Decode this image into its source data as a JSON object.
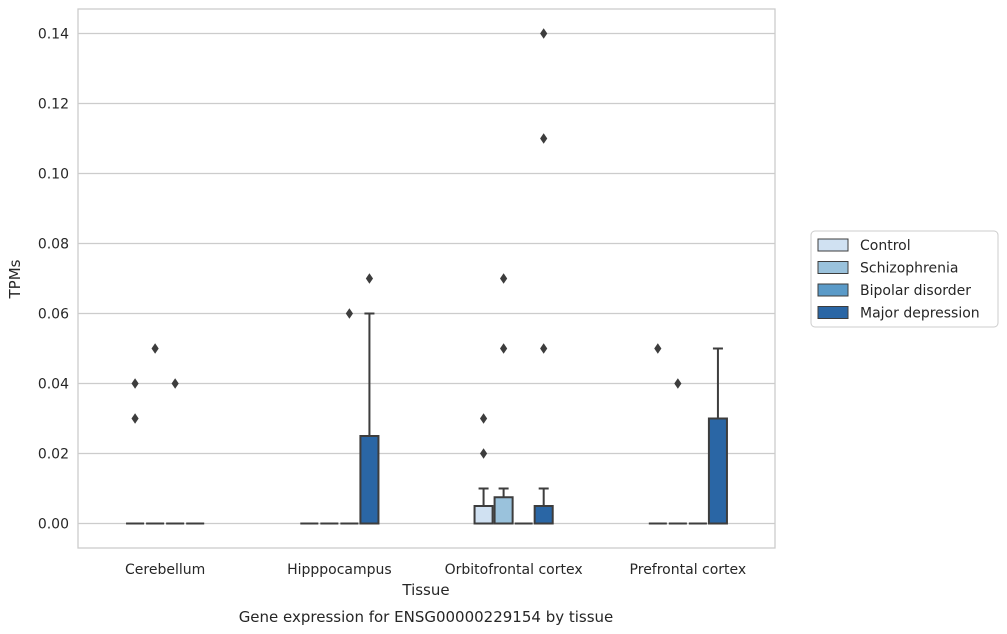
{
  "chart_data": {
    "type": "box",
    "title": "Gene expression for ENSG00000229154 by tissue",
    "xlabel": "Tissue",
    "ylabel": "TPMs",
    "ylim": [
      -0.007,
      0.147
    ],
    "yticks": [
      "0.00",
      "0.02",
      "0.04",
      "0.06",
      "0.08",
      "0.10",
      "0.12",
      "0.14"
    ],
    "ytick_values": [
      0,
      0.02,
      0.04,
      0.06,
      0.08,
      0.1,
      0.12,
      0.14
    ],
    "grid": true,
    "legend_position": "right",
    "categories": [
      "Cerebellum",
      "Hipppocampus",
      "Orbitofrontal cortex",
      "Prefrontal cortex"
    ],
    "series": [
      {
        "name": "Control",
        "color": "#d0e1f2",
        "boxes": [
          {
            "q1": 0,
            "median": 0,
            "q3": 0,
            "whisker_low": 0,
            "whisker_high": 0,
            "outliers": [
              0.03,
              0.04
            ]
          },
          {
            "q1": 0,
            "median": 0,
            "q3": 0,
            "whisker_low": 0,
            "whisker_high": 0,
            "outliers": []
          },
          {
            "q1": 0,
            "median": 0,
            "q3": 0.005,
            "whisker_low": 0,
            "whisker_high": 0.01,
            "outliers": [
              0.02,
              0.03
            ]
          },
          {
            "q1": 0,
            "median": 0,
            "q3": 0,
            "whisker_low": 0,
            "whisker_high": 0,
            "outliers": [
              0.05
            ]
          }
        ]
      },
      {
        "name": "Schizophrenia",
        "color": "#9ac2dc",
        "boxes": [
          {
            "q1": 0,
            "median": 0,
            "q3": 0,
            "whisker_low": 0,
            "whisker_high": 0,
            "outliers": [
              0.05
            ]
          },
          {
            "q1": 0,
            "median": 0,
            "q3": 0,
            "whisker_low": 0,
            "whisker_high": 0,
            "outliers": []
          },
          {
            "q1": 0,
            "median": 0,
            "q3": 0.0075,
            "whisker_low": 0,
            "whisker_high": 0.01,
            "outliers": [
              0.05,
              0.07
            ]
          },
          {
            "q1": 0,
            "median": 0,
            "q3": 0,
            "whisker_low": 0,
            "whisker_high": 0,
            "outliers": [
              0.04
            ]
          }
        ]
      },
      {
        "name": "Bipolar disorder",
        "color": "#5a9ac8",
        "boxes": [
          {
            "q1": 0,
            "median": 0,
            "q3": 0,
            "whisker_low": 0,
            "whisker_high": 0,
            "outliers": [
              0.04
            ]
          },
          {
            "q1": 0,
            "median": 0,
            "q3": 0,
            "whisker_low": 0,
            "whisker_high": 0,
            "outliers": [
              0.06
            ]
          },
          {
            "q1": 0,
            "median": 0,
            "q3": 0,
            "whisker_low": 0,
            "whisker_high": 0,
            "outliers": []
          },
          {
            "q1": 0,
            "median": 0,
            "q3": 0,
            "whisker_low": 0,
            "whisker_high": 0,
            "outliers": []
          }
        ]
      },
      {
        "name": "Major depression",
        "color": "#2a66a5",
        "boxes": [
          {
            "q1": 0,
            "median": 0,
            "q3": 0,
            "whisker_low": 0,
            "whisker_high": 0,
            "outliers": []
          },
          {
            "q1": 0,
            "median": 0,
            "q3": 0.025,
            "whisker_low": 0,
            "whisker_high": 0.06,
            "outliers": [
              0.07
            ]
          },
          {
            "q1": 0,
            "median": 0,
            "q3": 0.005,
            "whisker_low": 0,
            "whisker_high": 0.01,
            "outliers": [
              0.05,
              0.11,
              0.14
            ]
          },
          {
            "q1": 0,
            "median": 0,
            "q3": 0.03,
            "whisker_low": 0,
            "whisker_high": 0.05,
            "outliers": []
          }
        ]
      }
    ]
  }
}
